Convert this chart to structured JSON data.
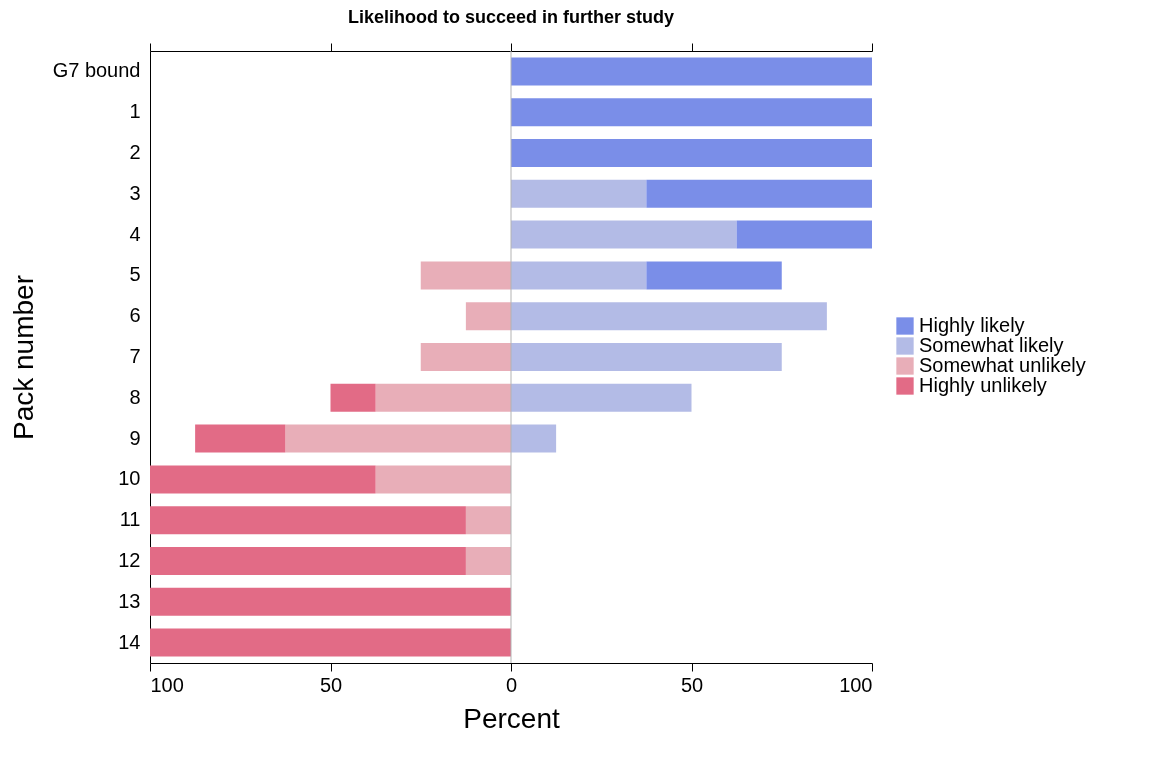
{
  "chart_data": {
    "type": "bar",
    "orientation": "horizontal",
    "stacked": true,
    "title": "Likelihood to succeed in further study",
    "xlabel": "Percent",
    "ylabel": "Pack number",
    "categories": [
      "G7 bound",
      "1",
      "2",
      "3",
      "4",
      "5",
      "6",
      "7",
      "8",
      "9",
      "10",
      "11",
      "12",
      "13",
      "14"
    ],
    "series": [
      {
        "name": "Somewhat likely",
        "color": "#b3bbe6",
        "values": [
          null,
          null,
          null,
          37.5,
          62.5,
          37.5,
          87.5,
          75,
          50,
          12.5,
          null,
          null,
          null,
          null,
          null
        ]
      },
      {
        "name": "Highly likely",
        "color": "#7a8ee8",
        "values": [
          100,
          100,
          100,
          62.5,
          37.5,
          37.5,
          null,
          null,
          null,
          null,
          null,
          null,
          null,
          null,
          null
        ]
      },
      {
        "name": "Somewhat unlikely",
        "color": "#e8aeb8",
        "values": [
          null,
          null,
          null,
          null,
          null,
          -25,
          -12.5,
          -25,
          -37.5,
          -62.5,
          -37.5,
          -12.5,
          -12.5,
          null,
          null
        ]
      },
      {
        "name": "Highly unlikely",
        "color": "#e26b86",
        "values": [
          null,
          null,
          null,
          null,
          null,
          null,
          null,
          null,
          -12.5,
          -25,
          -62.5,
          -87.5,
          -87.5,
          -100,
          -100
        ]
      }
    ],
    "xlim": [
      -100,
      100
    ],
    "xticks": [
      {
        "value": -100,
        "label": "100"
      },
      {
        "value": -50,
        "label": "50"
      },
      0,
      50,
      {
        "value": 100,
        "label": "100"
      }
    ],
    "ref_lines": [
      {
        "axis": "x",
        "value": 0,
        "color": "#b3b3b3"
      }
    ],
    "legend": "right"
  }
}
